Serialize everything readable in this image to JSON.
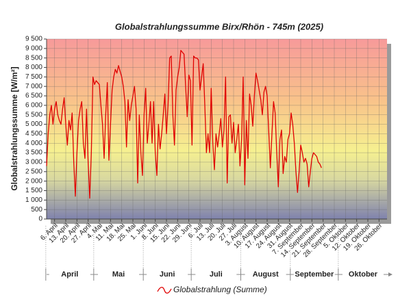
{
  "chart_data": {
    "type": "line",
    "title": "Globalstrahlungssumme Birx/Rhön - 745m (2025)",
    "y_label": "Globalstrahlungssumme [W/m²]",
    "categories": [
      null,
      null,
      null,
      null,
      null,
      "6. April",
      null,
      null,
      null,
      null,
      null,
      null,
      "13. April",
      null,
      null,
      null,
      null,
      null,
      null,
      "20. April",
      null,
      null,
      null,
      null,
      null,
      null,
      "27. April",
      null,
      null,
      null,
      null,
      null,
      null,
      "4. Mai",
      null,
      null,
      null,
      null,
      null,
      null,
      "11. Mai",
      null,
      null,
      null,
      null,
      null,
      null,
      "18. Mai",
      null,
      null,
      null,
      null,
      null,
      null,
      "25. Mai",
      null,
      null,
      null,
      null,
      null,
      null,
      "1. Juni",
      null,
      null,
      null,
      null,
      null,
      null,
      "8. Juni",
      null,
      null,
      null,
      null,
      null,
      null,
      "15. Juni",
      null,
      null,
      null,
      null,
      null,
      null,
      "22. Juni",
      null,
      null,
      null,
      null,
      null,
      null,
      "29. Juni",
      null,
      null,
      null,
      null,
      null,
      null,
      "6. Juli",
      null,
      null,
      null,
      null,
      null,
      null,
      "13. Juli",
      null,
      null,
      null,
      null,
      null,
      null,
      "20. Juli",
      null,
      null,
      null,
      null,
      null,
      null,
      "27. Juli",
      null,
      null,
      null,
      null,
      null,
      null,
      "3. August",
      null,
      null,
      null,
      null,
      null,
      null,
      "10. August",
      null,
      null,
      null,
      null,
      null,
      null,
      "17. August",
      null,
      null,
      null,
      null,
      null,
      null,
      "24. August",
      null,
      null,
      null,
      null,
      null,
      null,
      "31. August",
      null,
      null,
      null,
      null,
      null,
      null,
      "7. September",
      null,
      null,
      null,
      null,
      null,
      null,
      "14. September",
      null,
      null,
      null,
      null,
      null,
      null,
      "21. September",
      null,
      null,
      null,
      null,
      null,
      null,
      "28. September",
      null,
      null,
      null,
      null,
      null,
      null,
      "5. Oktober",
      null,
      null,
      null,
      null,
      null,
      null,
      "12. Oktober",
      null,
      null,
      null,
      null,
      null,
      null,
      "19. Oktober",
      null,
      null,
      null,
      null,
      null,
      null,
      "26. Oktober",
      null,
      null,
      null,
      null,
      null
    ],
    "months": [
      "April",
      "Mai",
      "Juni",
      "Juli",
      "August",
      "September",
      "Oktober"
    ],
    "series": [
      {
        "name": "Globalstrahlung (Summe)",
        "color": "#e00000",
        "values": [
          2800,
          4500,
          5500,
          6000,
          5000,
          5800,
          6200,
          5500,
          5200,
          5000,
          5800,
          6400,
          5000,
          3900,
          5200,
          4700,
          5600,
          3000,
          1200,
          3500,
          5200,
          5800,
          6200,
          4000,
          3200,
          5800,
          3000,
          1100,
          3500,
          7500,
          7100,
          7300,
          7200,
          7100,
          6000,
          5000,
          3200,
          5500,
          7200,
          3100,
          5000,
          6800,
          7500,
          7900,
          7700,
          8100,
          7800,
          7500,
          7000,
          6200,
          3800,
          6300,
          5200,
          6000,
          6500,
          7000,
          5800,
          1900,
          5500,
          3500,
          2300,
          5500,
          6900,
          4000,
          5000,
          6200,
          4000,
          6200,
          3500,
          2300,
          5000,
          3700,
          4500,
          5500,
          6600,
          4500,
          6000,
          8500,
          8600,
          5500,
          3900,
          6800,
          7500,
          8000,
          8900,
          8800,
          8700,
          7000,
          5400,
          7600,
          7300,
          3900,
          8600,
          8500,
          8500,
          8400,
          6800,
          7500,
          8200,
          6000,
          3500,
          4500,
          3500,
          6900,
          4000,
          2600,
          4500,
          3800,
          4500,
          5300,
          3800,
          4700,
          7500,
          1900,
          5400,
          5500,
          4000,
          5100,
          3500,
          4200,
          5000,
          2800,
          4200,
          7500,
          1800,
          5200,
          3200,
          6600,
          6000,
          4900,
          6500,
          7700,
          7300,
          6800,
          6300,
          5500,
          6700,
          7000,
          6500,
          4600,
          2700,
          4500,
          6200,
          5600,
          3500,
          1700,
          4200,
          4700,
          2400,
          3300,
          3000,
          4200,
          4500,
          5600,
          5000,
          4000,
          2500,
          1400,
          2500,
          3900,
          3500,
          3000,
          3200,
          2900,
          1700,
          2500,
          3200,
          3500,
          3400,
          3300,
          3000,
          2900,
          2700,
          null,
          null,
          null,
          null,
          null,
          null,
          null,
          null,
          null,
          null,
          null,
          null,
          null,
          null,
          null,
          null,
          null,
          null,
          null,
          null,
          null,
          null,
          null,
          null,
          null,
          null,
          null,
          null,
          null,
          null,
          null,
          null,
          null,
          null,
          null,
          null,
          null,
          null,
          null,
          null,
          null
        ]
      }
    ],
    "ylim": [
      0,
      9500
    ],
    "yticks": [
      0,
      500,
      {
        "value": 1000,
        "label": "1 000"
      },
      {
        "value": 1500,
        "label": "1 500"
      },
      {
        "value": 2000,
        "label": "2 000"
      },
      {
        "value": 2500,
        "label": "2 500"
      },
      {
        "value": 3000,
        "label": "3 000"
      },
      {
        "value": 3500,
        "label": "3 500"
      },
      {
        "value": 4000,
        "label": "4 000"
      },
      {
        "value": 4500,
        "label": "4 500"
      },
      {
        "value": 5000,
        "label": "5 000"
      },
      {
        "value": 5500,
        "label": "5 500"
      },
      {
        "value": 6000,
        "label": "6 000"
      },
      {
        "value": 6500,
        "label": "6 500"
      },
      {
        "value": 7000,
        "label": "7 000"
      },
      {
        "value": 7500,
        "label": "7 500"
      },
      {
        "value": 8000,
        "label": "8 000"
      },
      {
        "value": 8500,
        "label": "8 500"
      },
      {
        "value": 9000,
        "label": "9 000"
      },
      {
        "value": 9500,
        "label": "9 500"
      }
    ],
    "grid": true
  }
}
